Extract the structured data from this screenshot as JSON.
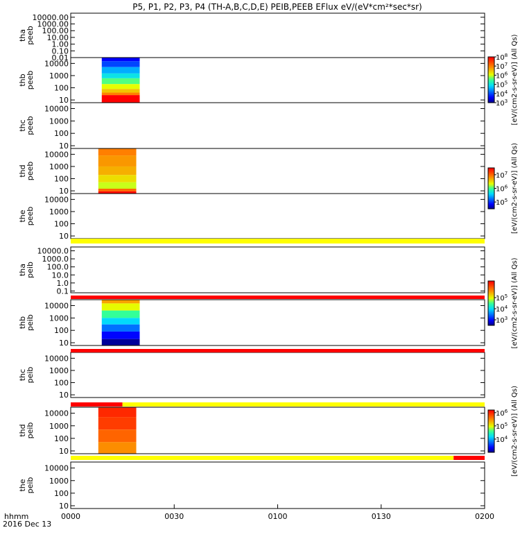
{
  "chart_data": {
    "type": "heatmap",
    "title": "P5, P1, P2, P3, P4 (TH-A,B,C,D,E) PEIB,PEEB EFlux eV/(eV*cm²*sec*sr)",
    "x_units": "hhmm",
    "date_label": "2016 Dec 13",
    "x_ticks": [
      "0000",
      "0030",
      "0100",
      "0130",
      "0200"
    ],
    "xlim_minutes": [
      0,
      120
    ],
    "panels": [
      {
        "probe": "tha",
        "instrument": "peeb",
        "ylim": [
          0.01,
          40000
        ],
        "y_ticks": [
          "10000.00",
          "1000.00",
          "100.00",
          "10.00",
          "1.00",
          "0.10",
          "0.01"
        ],
        "data": null
      },
      {
        "probe": "thb",
        "instrument": "peeb",
        "ylim": [
          6,
          30000
        ],
        "y_ticks": [
          "10000",
          "1000",
          "100",
          "10"
        ],
        "data": {
          "t_start_min": 9,
          "t_end_min": 20,
          "zlim_log": [
            3,
            8
          ],
          "rows": [
            {
              "e_lo": 15000,
              "e_hi": 30000,
              "log_flux": 3.6
            },
            {
              "e_lo": 5000,
              "e_hi": 15000,
              "log_flux": 4.0
            },
            {
              "e_lo": 1500,
              "e_hi": 5000,
              "log_flux": 4.6
            },
            {
              "e_lo": 600,
              "e_hi": 1500,
              "log_flux": 5.0
            },
            {
              "e_lo": 200,
              "e_hi": 600,
              "log_flux": 5.6
            },
            {
              "e_lo": 80,
              "e_hi": 200,
              "log_flux": 6.1
            },
            {
              "e_lo": 40,
              "e_hi": 80,
              "log_flux": 6.5
            },
            {
              "e_lo": 25,
              "e_hi": 40,
              "log_flux": 7.0
            },
            {
              "e_lo": 6,
              "e_hi": 25,
              "log_flux": 8.0
            }
          ]
        }
      },
      {
        "probe": "thc",
        "instrument": "peeb",
        "ylim": [
          6,
          30000
        ],
        "y_ticks": [
          "10000",
          "1000",
          "100",
          "10"
        ],
        "data": null
      },
      {
        "probe": "thd",
        "instrument": "peeb",
        "ylim": [
          6,
          30000
        ],
        "y_ticks": [
          "10000",
          "1000",
          "100",
          "10"
        ],
        "data": {
          "t_start_min": 8,
          "t_end_min": 19,
          "zlim_log": [
            4.5,
            7.5
          ],
          "rows": [
            {
              "e_lo": 8000,
              "e_hi": 30000,
              "log_flux": 6.9
            },
            {
              "e_lo": 1000,
              "e_hi": 8000,
              "log_flux": 6.8
            },
            {
              "e_lo": 200,
              "e_hi": 1000,
              "log_flux": 6.7
            },
            {
              "e_lo": 50,
              "e_hi": 200,
              "log_flux": 6.5
            },
            {
              "e_lo": 15,
              "e_hi": 50,
              "log_flux": 6.3
            },
            {
              "e_lo": 9,
              "e_hi": 15,
              "log_flux": 7.0
            },
            {
              "e_lo": 6,
              "e_hi": 9,
              "log_flux": 7.5
            }
          ]
        }
      },
      {
        "probe": "the",
        "instrument": "peeb",
        "ylim": [
          6,
          30000
        ],
        "y_ticks": [
          "10000",
          "1000",
          "100",
          "10"
        ],
        "data": null
      },
      {
        "probe": "tha",
        "instrument": "peib",
        "ylim": [
          0.06,
          30000
        ],
        "y_ticks": [
          "10000.0",
          "1000.0",
          "100.0",
          "10.0",
          "1.0",
          "0.1"
        ],
        "data": null
      },
      {
        "probe": "thb",
        "instrument": "peib",
        "ylim": [
          6,
          30000
        ],
        "y_ticks": [
          "10000",
          "1000",
          "100",
          "10"
        ],
        "data": {
          "t_start_min": 9,
          "t_end_min": 20,
          "zlim_log": [
            2.5,
            6.5
          ],
          "rows": [
            {
              "e_lo": 15000,
              "e_hi": 30000,
              "log_flux": 5.5
            },
            {
              "e_lo": 4000,
              "e_hi": 15000,
              "log_flux": 5.0
            },
            {
              "e_lo": 1000,
              "e_hi": 4000,
              "log_flux": 4.5
            },
            {
              "e_lo": 300,
              "e_hi": 1000,
              "log_flux": 4.0
            },
            {
              "e_lo": 80,
              "e_hi": 300,
              "log_flux": 3.5
            },
            {
              "e_lo": 20,
              "e_hi": 80,
              "log_flux": 3.0
            },
            {
              "e_lo": 6,
              "e_hi": 20,
              "log_flux": 2.6
            }
          ]
        }
      },
      {
        "probe": "thc",
        "instrument": "peib",
        "ylim": [
          6,
          30000
        ],
        "y_ticks": [
          "10000",
          "1000",
          "100",
          "10"
        ],
        "data": null
      },
      {
        "probe": "thd",
        "instrument": "peib",
        "ylim": [
          6,
          30000
        ],
        "y_ticks": [
          "10000",
          "1000",
          "100",
          "10"
        ],
        "data": {
          "t_start_min": 8,
          "t_end_min": 19,
          "zlim_log": [
            3,
            6.2
          ],
          "rows": [
            {
              "e_lo": 5000,
              "e_hi": 30000,
              "log_flux": 6.0
            },
            {
              "e_lo": 500,
              "e_hi": 5000,
              "log_flux": 5.9
            },
            {
              "e_lo": 50,
              "e_hi": 500,
              "log_flux": 5.7
            },
            {
              "e_lo": 6,
              "e_hi": 50,
              "log_flux": 5.5
            }
          ]
        }
      },
      {
        "probe": "the",
        "instrument": "peib",
        "ylim": [
          6,
          30000
        ],
        "y_ticks": [
          "10000",
          "1000",
          "100",
          "10"
        ],
        "data": null
      }
    ],
    "status_bars": [
      {
        "below_panel": 4,
        "segments": [
          {
            "t0": 0,
            "t1": 120,
            "color": "#ffff00"
          }
        ]
      },
      {
        "below_panel": 5,
        "segments": [
          {
            "t0": 0,
            "t1": 120,
            "color": "#ff0000"
          }
        ]
      },
      {
        "below_panel": 6,
        "segments": [
          {
            "t0": 0,
            "t1": 120,
            "color": "#ff0000"
          }
        ]
      },
      {
        "below_panel": 7,
        "segments": [
          {
            "t0": 0,
            "t1": 15,
            "color": "#ff0000"
          },
          {
            "t0": 15,
            "t1": 120,
            "color": "#ffff00"
          }
        ]
      },
      {
        "below_panel": 8,
        "segments": [
          {
            "t0": 0,
            "t1": 111,
            "color": "#ffff00"
          },
          {
            "t0": 111,
            "t1": 120,
            "color": "#ff0000"
          }
        ]
      }
    ],
    "colorbars": [
      {
        "label": "[eV/(cm2-s-sr-eV)] (All Qs)",
        "ticks_log": [
          3,
          4,
          5,
          6,
          7,
          8
        ],
        "zlim_log": [
          3,
          8
        ]
      },
      {
        "label": "[eV/(cm2-s-sr-eV)] (All Qs)",
        "ticks_log": [
          5,
          6,
          7
        ],
        "zlim_log": [
          4.5,
          7.5
        ]
      },
      {
        "label": "[eV/(cm2-s-sr-eV)] (All Qs)",
        "ticks_log": [
          3,
          4,
          5
        ],
        "zlim_log": [
          2.5,
          6.5
        ]
      },
      {
        "label": "[eV/(cm2-s-sr-eV)] (All Qs)",
        "ticks_log": [
          4,
          5,
          6
        ],
        "zlim_log": [
          3,
          6.2
        ]
      }
    ]
  }
}
